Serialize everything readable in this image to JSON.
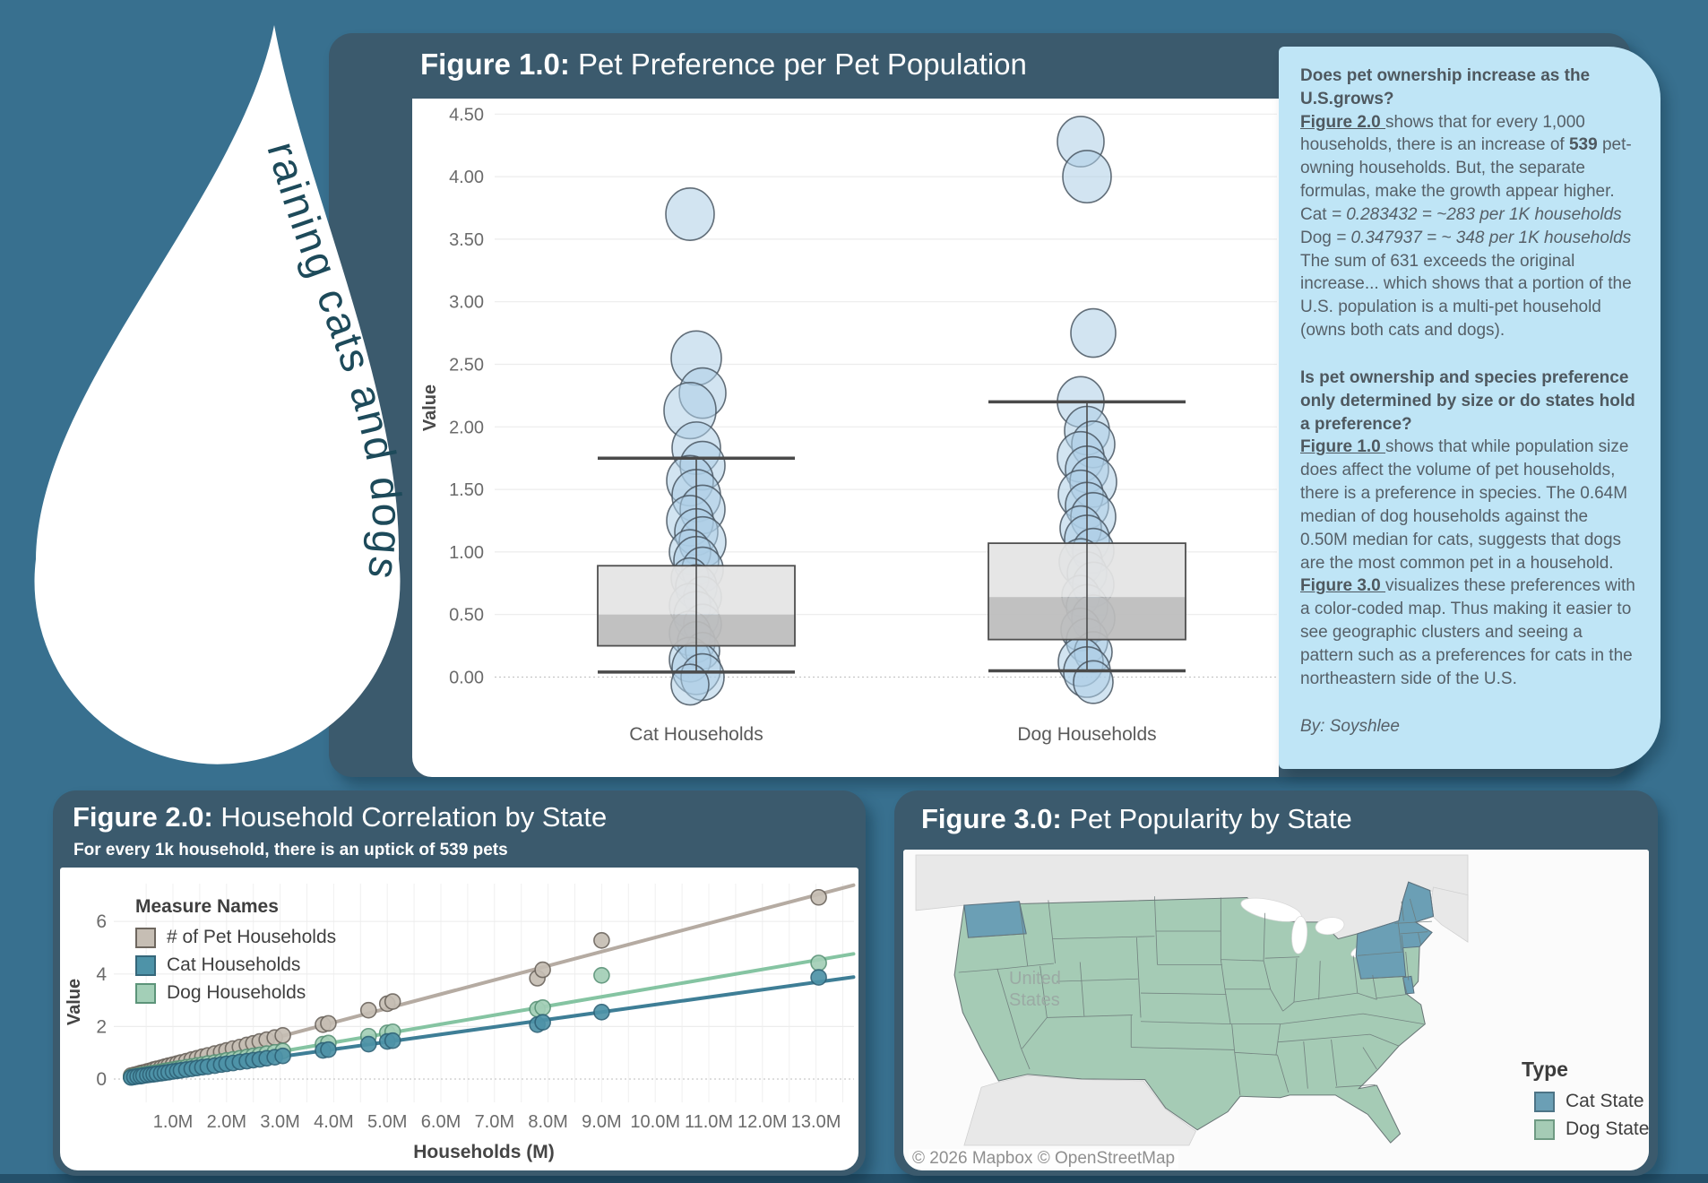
{
  "page": {
    "background": "#38708f",
    "footer_bar": "#24506a"
  },
  "logo": {
    "text": "raining cats and dogs",
    "drop_color": "#ffffff",
    "text_color": "#1d4a5a"
  },
  "figure1": {
    "title_prefix": "Figure 1.0:",
    "title_rest": " Pet Preference per Pet Population",
    "ylabel": "Value",
    "categories": [
      "Cat Households",
      "Dog Households"
    ]
  },
  "notes": {
    "blocks": [
      {
        "segments": [
          {
            "t": "Does pet ownership increase as the U.S.grows?",
            "b": true
          }
        ]
      },
      {
        "segments": [
          {
            "t": "Figure 2.0 ",
            "b": true,
            "u": true
          },
          {
            "t": "shows that for every 1,000 households, there is an increase of "
          },
          {
            "t": "539",
            "b": true
          },
          {
            "t": " pet-owning households. But, the separate formulas, make the growth appear higher."
          }
        ]
      },
      {
        "segments": [
          {
            "t": "Cat "
          },
          {
            "t": "= 0.283432 = ~283 per 1K households",
            "i": true
          }
        ]
      },
      {
        "segments": [
          {
            "t": "Dog "
          },
          {
            "t": "= 0.347937 = ~ 348 per 1K households",
            "i": true
          }
        ]
      },
      {
        "segments": [
          {
            "t": "The sum of 631 exceeds the original increase... which shows that a portion of the U.S. population is a multi-pet household (owns both cats and dogs)."
          }
        ]
      },
      {
        "spacer": true
      },
      {
        "segments": [
          {
            "t": "Is pet ownership and species preference only determined by size or do states hold a preference?",
            "b": true
          }
        ]
      },
      {
        "segments": [
          {
            "t": "Figure 1.0 ",
            "b": true,
            "u": true
          },
          {
            "t": "shows that while population size does affect the volume of pet households, there is a preference in species. The 0.64M median of dog households against the 0.50M median for cats, suggests that dogs are the most common pet in a household."
          }
        ]
      },
      {
        "segments": [
          {
            "t": "Figure 3.0 ",
            "b": true,
            "u": true
          },
          {
            "t": "visualizes these preferences with a color-coded map. Thus making it easier to see geographic clusters and seeing a pattern such as a preferences for cats in the northeastern side of the U.S."
          }
        ]
      },
      {
        "spacer": true
      },
      {
        "segments": [
          {
            "t": "By: Soyshlee",
            "i": true
          }
        ]
      }
    ]
  },
  "figure2": {
    "title_prefix": "Figure 2.0:",
    "title_rest": " Household Correlation by State",
    "subtitle": "For every 1k household, there is an uptick of 539 pets",
    "xlabel": "Households (M)",
    "ylabel": "Value",
    "legend_title": "Measure Names",
    "legend": [
      {
        "label": "# of Pet Households",
        "color": "#c6beb4",
        "border": "#6e675f"
      },
      {
        "label": "Cat Households",
        "color": "#4e93a8",
        "border": "#35677a"
      },
      {
        "label": "Dog Households",
        "color": "#a3cfb7",
        "border": "#5c9479"
      }
    ]
  },
  "figure3": {
    "title_prefix": "Figure 3.0:",
    "title_rest": " Pet Popularity by State",
    "map_label_line1": "United",
    "map_label_line2": "States",
    "legend_title": "Type",
    "legend": [
      {
        "label": "Cat State",
        "color": "#6b9fb5",
        "border": "#4d7486"
      },
      {
        "label": "Dog State",
        "color": "#a5cbb5",
        "border": "#6f9a83"
      }
    ],
    "attribution": "© 2026 Mapbox  © OpenStreetMap"
  },
  "chart_data": [
    {
      "type": "boxplot-dot",
      "title": "Figure 1.0: Pet Preference per Pet Population",
      "ylabel": "Value",
      "ylim": [
        -0.35,
        4.75
      ],
      "yticks": [
        0,
        0.5,
        1,
        1.5,
        2,
        2.5,
        3,
        3.5,
        4,
        4.5
      ],
      "categories": [
        "Cat Households",
        "Dog Households"
      ],
      "series": [
        {
          "name": "Cat Households",
          "box": {
            "q1": 0.25,
            "median": 0.5,
            "q3": 0.89,
            "whisker_low": 0.04,
            "whisker_high": 1.75
          },
          "points": [
            [
              3.7,
              27
            ],
            [
              2.55,
              28
            ],
            [
              2.27,
              26
            ],
            [
              2.13,
              29
            ],
            [
              1.83,
              27
            ],
            [
              1.69,
              25
            ],
            [
              1.57,
              26
            ],
            [
              1.45,
              27
            ],
            [
              1.34,
              25
            ],
            [
              1.25,
              26
            ],
            [
              1.16,
              24
            ],
            [
              1.08,
              26
            ],
            [
              1.0,
              23
            ],
            [
              0.93,
              25
            ],
            [
              0.86,
              23
            ],
            [
              0.79,
              21
            ],
            [
              0.72,
              23
            ],
            [
              0.64,
              21
            ],
            [
              0.57,
              23
            ],
            [
              0.49,
              25
            ],
            [
              0.42,
              21
            ],
            [
              0.35,
              23
            ],
            [
              0.28,
              21
            ],
            [
              0.21,
              19
            ],
            [
              0.14,
              23
            ],
            [
              0.07,
              27
            ],
            [
              0.0,
              24
            ],
            [
              -0.06,
              21
            ]
          ]
        },
        {
          "name": "Dog Households",
          "box": {
            "q1": 0.3,
            "median": 0.64,
            "q3": 1.07,
            "whisker_low": 0.05,
            "whisker_high": 2.2
          },
          "points": [
            [
              4.28,
              26
            ],
            [
              4.0,
              27
            ],
            [
              2.75,
              25
            ],
            [
              2.2,
              26
            ],
            [
              1.97,
              25
            ],
            [
              1.86,
              24
            ],
            [
              1.76,
              26
            ],
            [
              1.66,
              24
            ],
            [
              1.56,
              26
            ],
            [
              1.46,
              25
            ],
            [
              1.37,
              24
            ],
            [
              1.28,
              25
            ],
            [
              1.19,
              23
            ],
            [
              1.1,
              25
            ],
            [
              1.01,
              23
            ],
            [
              0.92,
              24
            ],
            [
              0.83,
              22
            ],
            [
              0.74,
              23
            ],
            [
              0.65,
              21
            ],
            [
              0.56,
              23
            ],
            [
              0.47,
              24
            ],
            [
              0.38,
              22
            ],
            [
              0.29,
              23
            ],
            [
              0.2,
              21
            ],
            [
              0.12,
              25
            ],
            [
              0.04,
              26
            ],
            [
              -0.04,
              22
            ]
          ]
        }
      ]
    },
    {
      "type": "scatter",
      "xlabel": "Households (M)",
      "ylabel": "Value",
      "xticks": [
        1,
        2,
        3,
        4,
        5,
        6,
        7,
        8,
        9,
        10,
        11,
        12,
        13
      ],
      "yticks": [
        0,
        2,
        4,
        6
      ],
      "ylim": [
        -0.9,
        7.5
      ],
      "series": [
        {
          "name": "# of Pet Households",
          "slope_per_1k_households": 0.539,
          "color": "#c6beb4",
          "border": "#6e675f",
          "line_color": "#b5aba2"
        },
        {
          "name": "Cat Households",
          "slope_per_1k_households": 0.283432,
          "color": "#4e93a8",
          "border": "#2f6378",
          "line_color": "#3e7e96"
        },
        {
          "name": "Dog Households",
          "slope_per_1k_households": 0.347937,
          "color": "#a3cfb7",
          "border": "#5c9479",
          "line_color": "#85c4a2"
        }
      ],
      "points_x_pet_cat_dog": [
        [
          0.22,
          0.13,
          0.06,
          0.08
        ],
        [
          0.28,
          0.16,
          0.08,
          0.1
        ],
        [
          0.34,
          0.19,
          0.1,
          0.12
        ],
        [
          0.4,
          0.23,
          0.11,
          0.15
        ],
        [
          0.45,
          0.25,
          0.13,
          0.17
        ],
        [
          0.52,
          0.29,
          0.15,
          0.19
        ],
        [
          0.58,
          0.32,
          0.17,
          0.21
        ],
        [
          0.64,
          0.36,
          0.18,
          0.23
        ],
        [
          0.7,
          0.39,
          0.2,
          0.25
        ],
        [
          0.78,
          0.43,
          0.22,
          0.28
        ],
        [
          0.85,
          0.47,
          0.24,
          0.31
        ],
        [
          0.92,
          0.51,
          0.26,
          0.33
        ],
        [
          1.0,
          0.55,
          0.29,
          0.36
        ],
        [
          1.08,
          0.59,
          0.31,
          0.39
        ],
        [
          1.15,
          0.63,
          0.33,
          0.41
        ],
        [
          1.25,
          0.68,
          0.36,
          0.45
        ],
        [
          1.35,
          0.74,
          0.39,
          0.48
        ],
        [
          1.45,
          0.79,
          0.42,
          0.52
        ],
        [
          1.55,
          0.85,
          0.45,
          0.55
        ],
        [
          1.65,
          0.9,
          0.47,
          0.59
        ],
        [
          1.78,
          0.97,
          0.51,
          0.63
        ],
        [
          1.9,
          1.03,
          0.55,
          0.67
        ],
        [
          2.0,
          1.09,
          0.58,
          0.71
        ],
        [
          2.12,
          1.16,
          0.61,
          0.75
        ],
        [
          2.25,
          1.22,
          0.65,
          0.79
        ],
        [
          2.38,
          1.3,
          0.68,
          0.84
        ],
        [
          2.5,
          1.36,
          0.72,
          0.88
        ],
        [
          2.62,
          1.43,
          0.75,
          0.92
        ],
        [
          2.75,
          1.5,
          0.79,
          0.97
        ],
        [
          2.9,
          1.58,
          0.83,
          1.02
        ],
        [
          3.05,
          1.66,
          0.88,
          1.07
        ],
        [
          3.8,
          2.07,
          1.09,
          1.33
        ],
        [
          3.9,
          2.12,
          1.12,
          1.37
        ],
        [
          4.65,
          2.62,
          1.33,
          1.63
        ],
        [
          5.0,
          2.87,
          1.43,
          1.76
        ],
        [
          5.1,
          2.95,
          1.46,
          1.8
        ],
        [
          7.8,
          3.84,
          2.07,
          2.66
        ],
        [
          7.9,
          4.16,
          2.16,
          2.72
        ],
        [
          9.0,
          5.28,
          2.55,
          3.95
        ],
        [
          13.05,
          6.92,
          3.87,
          4.42
        ]
      ]
    },
    {
      "type": "choropleth",
      "title": "Figure 3.0: Pet Popularity by State",
      "classes": [
        {
          "label": "Cat State",
          "color": "#6b9fb5",
          "states": [
            "WA",
            "NY",
            "PA",
            "VT",
            "NH",
            "ME",
            "MA",
            "CT",
            "RI",
            "DE"
          ]
        },
        {
          "label": "Dog State",
          "color": "#a5cbb5",
          "states": [
            "all other states"
          ]
        }
      ]
    }
  ]
}
